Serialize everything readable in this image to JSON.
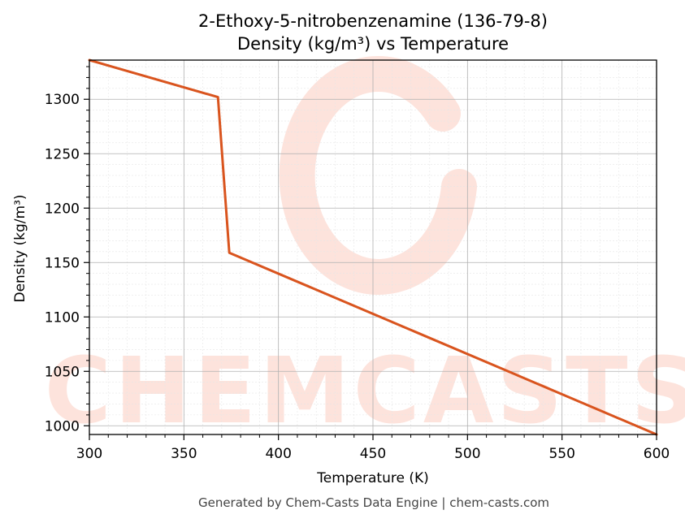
{
  "chart_data": {
    "type": "line",
    "title_line1": "2-Ethoxy-5-nitrobenzenamine (136-79-8)",
    "title_line2": "Density (kg/m³) vs Temperature",
    "xlabel": "Temperature (K)",
    "ylabel": "Density (kg/m³)",
    "xlim": [
      300,
      600
    ],
    "ylim": [
      992,
      1336
    ],
    "xticks": [
      300,
      350,
      400,
      450,
      500,
      550,
      600
    ],
    "yticks": [
      1000,
      1050,
      1100,
      1150,
      1200,
      1250,
      1300
    ],
    "grid": true,
    "series": [
      {
        "color": "#d9541e",
        "x": [
          300,
          368,
          374,
          600
        ],
        "y": [
          1336,
          1302,
          1159,
          992
        ]
      }
    ]
  },
  "watermark": {
    "text": "CHEMCASTS",
    "color": "#fde3dc"
  },
  "footer": "Generated by Chem-Casts Data Engine | chem-casts.com"
}
